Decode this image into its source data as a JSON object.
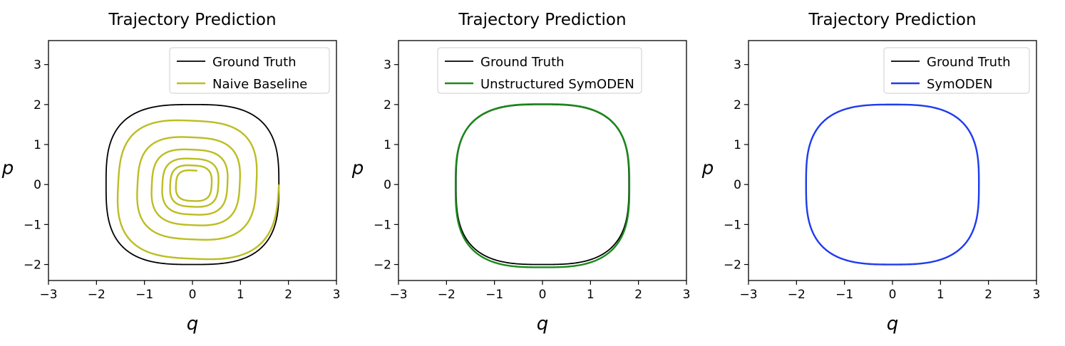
{
  "figure": {
    "panel_names": [
      "naive-baseline",
      "unstructured-symoden",
      "symoden"
    ]
  },
  "chart_data": [
    {
      "type": "line",
      "title": "Trajectory Prediction",
      "xlabel": "q",
      "ylabel": "p",
      "xlim": [
        -3,
        3
      ],
      "ylim": [
        -2.4,
        3.6
      ],
      "xticks": [
        -3,
        -2,
        -1,
        0,
        1,
        2,
        3
      ],
      "yticks": [
        -2,
        -1,
        0,
        1,
        2,
        3
      ],
      "xtick_labels": [
        "−3",
        "−2",
        "−1",
        "0",
        "1",
        "2",
        "3"
      ],
      "ytick_labels": [
        "−2",
        "−1",
        "0",
        "1",
        "2",
        "3"
      ],
      "grid": false,
      "legend": "top-right",
      "series": [
        {
          "name": "Ground Truth",
          "color": "#000000",
          "line_width": 1.8,
          "q_amplitude": 1.8,
          "p_amplitude": 2.0,
          "turns": 1,
          "decay": 0.0,
          "p_offset": 0.0
        },
        {
          "name": "Naive Baseline",
          "color": "#bcbd22",
          "line_width": 2.4,
          "q_amplitude": 1.8,
          "p_amplitude": 2.0,
          "turns": 5.8,
          "decay": 0.048,
          "p_offset": 0.0
        }
      ]
    },
    {
      "type": "line",
      "title": "Trajectory Prediction",
      "xlabel": "q",
      "ylabel": "p",
      "xlim": [
        -3,
        3
      ],
      "ylim": [
        -2.4,
        3.6
      ],
      "xticks": [
        -3,
        -2,
        -1,
        0,
        1,
        2,
        3
      ],
      "yticks": [
        -2,
        -1,
        0,
        1,
        2,
        3
      ],
      "xtick_labels": [
        "−3",
        "−2",
        "−1",
        "0",
        "1",
        "2",
        "3"
      ],
      "ytick_labels": [
        "−2",
        "−1",
        "0",
        "1",
        "2",
        "3"
      ],
      "grid": false,
      "legend": "top-left",
      "series": [
        {
          "name": "Ground Truth",
          "color": "#000000",
          "line_width": 1.8,
          "q_amplitude": 1.8,
          "p_amplitude": 2.0,
          "turns": 1,
          "decay": 0.0,
          "p_offset": 0.0
        },
        {
          "name": "Unstructured SymODEN",
          "color": "#1a8a1a",
          "line_width": 2.4,
          "q_amplitude": 1.81,
          "p_amplitude": 2.04,
          "turns": 1,
          "decay": 0.0,
          "p_offset": -0.03
        }
      ]
    },
    {
      "type": "line",
      "title": "Trajectory Prediction",
      "xlabel": "q",
      "ylabel": "p",
      "xlim": [
        -3,
        3
      ],
      "ylim": [
        -2.4,
        3.6
      ],
      "xticks": [
        -3,
        -2,
        -1,
        0,
        1,
        2,
        3
      ],
      "yticks": [
        -2,
        -1,
        0,
        1,
        2,
        3
      ],
      "xtick_labels": [
        "−3",
        "−2",
        "−1",
        "0",
        "1",
        "2",
        "3"
      ],
      "ytick_labels": [
        "−2",
        "−1",
        "0",
        "1",
        "2",
        "3"
      ],
      "grid": false,
      "legend": "top-right",
      "series": [
        {
          "name": "Ground Truth",
          "color": "#000000",
          "line_width": 1.8,
          "q_amplitude": 1.8,
          "p_amplitude": 2.0,
          "turns": 1,
          "decay": 0.0,
          "p_offset": 0.0
        },
        {
          "name": "SymODEN",
          "color": "#1f3bf0",
          "line_width": 2.4,
          "q_amplitude": 1.8,
          "p_amplitude": 2.0,
          "turns": 1,
          "decay": 0.0,
          "p_offset": 0.0
        }
      ]
    }
  ]
}
